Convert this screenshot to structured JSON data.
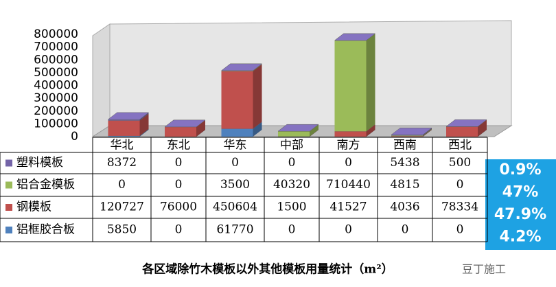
{
  "chart_data": {
    "type": "bar3d_stacked",
    "title": "各区域除竹木模板以外其他模板用量统计（m²）",
    "watermark": "豆丁施工",
    "categories": [
      "华北",
      "东北",
      "华东",
      "中部",
      "南方",
      "西南",
      "西北"
    ],
    "series": [
      {
        "name": "塑料模板",
        "color": "#7464a8",
        "values": [
          8372,
          0,
          0,
          0,
          0,
          5438,
          500
        ],
        "share": 0.9,
        "share_label": "0.9%"
      },
      {
        "name": "铝合金模板",
        "color": "#9bbb59",
        "values": [
          0,
          0,
          3500,
          40320,
          710440,
          4815,
          0
        ],
        "share": 47,
        "share_label": "47%"
      },
      {
        "name": "钢模板",
        "color": "#c0504d",
        "values": [
          120727,
          76000,
          450604,
          1500,
          41527,
          4036,
          78334
        ],
        "share": 47.9,
        "share_label": "47.9%"
      },
      {
        "name": "铝框胶合板",
        "color": "#4f81bd",
        "values": [
          5850,
          0,
          61770,
          0,
          0,
          0,
          0
        ],
        "share": 4.2,
        "share_label": "4.2%"
      }
    ],
    "ylim": [
      0,
      800000
    ],
    "yticks": [
      0,
      100000,
      200000,
      300000,
      400000,
      500000,
      600000,
      700000,
      800000
    ],
    "grid": false
  }
}
